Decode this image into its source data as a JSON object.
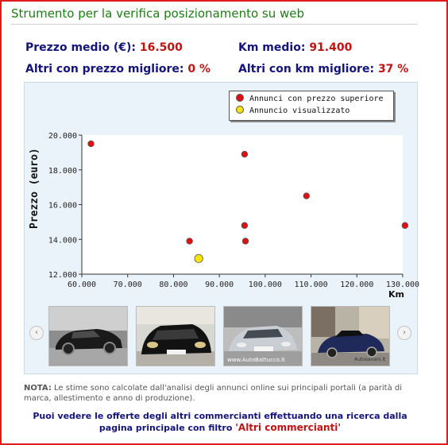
{
  "title": "Strumento per la verifica posizionamento su web",
  "stats": {
    "prezzo_label": "Prezzo medio (€):",
    "prezzo_value": "16.500",
    "km_label": "Km medio:",
    "km_value": "91.400",
    "altri_prezzo_label": "Altri con prezzo migliore:",
    "altri_prezzo_value": "0 %",
    "altri_km_label": "Altri con km migliore:",
    "altri_km_value": "37 %"
  },
  "chart_data": {
    "type": "scatter",
    "ylabel": "Prezzo (euro)",
    "xlabel": "Km",
    "xlim": [
      60000,
      130000
    ],
    "ylim": [
      12000,
      20000
    ],
    "x_ticks": [
      "60.000",
      "70.000",
      "80.000",
      "90.000",
      "100.000",
      "110.000",
      "120.000",
      "130.000"
    ],
    "y_ticks": [
      "12.000",
      "14.000",
      "16.000",
      "18.000",
      "20.000"
    ],
    "legend_position": "top-right",
    "grid": false,
    "series": [
      {
        "name": "Annunci con prezzo superiore",
        "color": "#e01010",
        "points": [
          [
            62000,
            19500
          ],
          [
            83500,
            13900
          ],
          [
            95500,
            18900
          ],
          [
            95500,
            14800
          ],
          [
            95700,
            13900
          ],
          [
            109000,
            16500
          ],
          [
            130500,
            14800
          ]
        ]
      },
      {
        "name": "Annuncio visualizzato",
        "color": "#f5e400",
        "points": [
          [
            85500,
            12900
          ]
        ]
      }
    ]
  },
  "carousel": {
    "prev_icon": "chevron-left-icon",
    "next_icon": "chevron-right-icon",
    "prev_glyph": "‹",
    "next_glyph": "›",
    "watermarks": [
      "",
      "",
      "www.AutoBattucco.it",
      "Autosavani.it"
    ]
  },
  "note": {
    "label": "NOTA:",
    "text": "Le stime sono calcolate dall'analisi degli annunci online sui principali portali (a parità di marca, allestimento e anno di produzione)."
  },
  "cta": {
    "text": "Puoi vedere le offerte degli altri commercianti effettuando una ricerca dalla pagina principale con filtro",
    "link": "'Altri commercianti'"
  }
}
